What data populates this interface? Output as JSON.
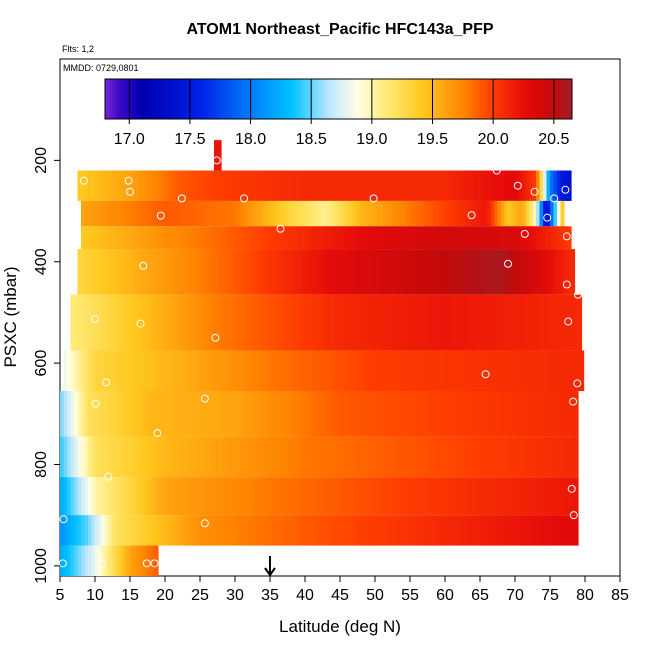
{
  "chart_data": {
    "type": "heatmap",
    "title": "ATOM1 Northeast_Pacific HFC143a_PFP",
    "flights_label": "Flts: 1,2",
    "mmdd_label": "MMDD: 0729,0801",
    "xlabel": "Latitude (deg N)",
    "ylabel": "PSXC (mbar)",
    "xlim": [
      5,
      85
    ],
    "ylim": [
      1020,
      0
    ],
    "x_ticks": [
      5,
      10,
      15,
      20,
      25,
      30,
      35,
      40,
      45,
      50,
      55,
      60,
      65,
      70,
      75,
      80,
      85
    ],
    "y_ticks": [
      200,
      400,
      600,
      800,
      1000
    ],
    "colorbar": {
      "min": 16.8,
      "max": 20.65,
      "ticks": [
        "17.0",
        "17.5",
        "18.0",
        "18.5",
        "19.0",
        "19.5",
        "20.0",
        "20.5"
      ],
      "tick_values": [
        17.0,
        17.5,
        18.0,
        18.5,
        19.0,
        19.5,
        20.0,
        20.5
      ]
    },
    "marker": {
      "latitude": 35,
      "symbol": "arrow"
    },
    "pressure_bands": [
      {
        "top": 160,
        "bottom": 220,
        "lat_start": 27,
        "lat_end": 28,
        "values": [
          [
            27,
            20.2
          ]
        ]
      },
      {
        "top": 220,
        "bottom": 280,
        "lat_start": 7.5,
        "lat_end": 78,
        "values": [
          [
            7.5,
            19.4
          ],
          [
            15,
            19.6
          ],
          [
            22,
            19.9
          ],
          [
            28,
            20.0
          ],
          [
            40,
            20.1
          ],
          [
            60,
            20.1
          ],
          [
            70,
            20.3
          ],
          [
            73,
            20.0
          ],
          [
            75,
            18.0
          ],
          [
            76,
            17.7
          ],
          [
            77,
            17.4
          ]
        ]
      },
      {
        "top": 280,
        "bottom": 330,
        "lat_start": 8,
        "lat_end": 77,
        "values": [
          [
            8,
            19.6
          ],
          [
            20,
            19.9
          ],
          [
            30,
            19.8
          ],
          [
            38,
            19.3
          ],
          [
            43,
            19.05
          ],
          [
            48,
            19.5
          ],
          [
            55,
            19.8
          ],
          [
            66,
            20.2
          ],
          [
            69,
            19.4
          ],
          [
            71,
            19.6
          ],
          [
            73,
            18.9
          ],
          [
            74.5,
            17.2
          ],
          [
            75.5,
            18.2
          ],
          [
            77,
            19.6
          ]
        ]
      },
      {
        "top": 330,
        "bottom": 375,
        "lat_start": 8,
        "lat_end": 78,
        "values": [
          [
            8,
            19.4
          ],
          [
            20,
            19.7
          ],
          [
            35,
            20.0
          ],
          [
            50,
            20.3
          ],
          [
            60,
            20.4
          ],
          [
            70,
            20.35
          ],
          [
            78,
            20.0
          ]
        ]
      },
      {
        "top": 375,
        "bottom": 465,
        "lat_start": 7.5,
        "lat_end": 78.5,
        "values": [
          [
            7.5,
            19.3
          ],
          [
            18,
            19.6
          ],
          [
            30,
            19.9
          ],
          [
            45,
            20.3
          ],
          [
            60,
            20.5
          ],
          [
            68,
            20.6
          ],
          [
            78,
            20.1
          ]
        ]
      },
      {
        "top": 465,
        "bottom": 575,
        "lat_start": 6.5,
        "lat_end": 79.5,
        "values": [
          [
            6.5,
            19.1
          ],
          [
            15,
            19.4
          ],
          [
            28,
            19.8
          ],
          [
            45,
            20.1
          ],
          [
            60,
            20.2
          ],
          [
            79,
            20.1
          ]
        ]
      },
      {
        "top": 575,
        "bottom": 655,
        "lat_start": 5.5,
        "lat_end": 79.8,
        "values": [
          [
            5.5,
            18.8
          ],
          [
            10,
            19.3
          ],
          [
            20,
            19.5
          ],
          [
            35,
            19.8
          ],
          [
            50,
            20.0
          ],
          [
            79,
            20.1
          ]
        ]
      },
      {
        "top": 655,
        "bottom": 745,
        "lat_start": 5,
        "lat_end": 79,
        "values": [
          [
            5,
            18.5
          ],
          [
            9,
            19.2
          ],
          [
            18,
            19.5
          ],
          [
            30,
            19.6
          ],
          [
            45,
            19.9
          ],
          [
            79,
            20.1
          ]
        ]
      },
      {
        "top": 745,
        "bottom": 825,
        "lat_start": 5,
        "lat_end": 79,
        "values": [
          [
            5,
            18.4
          ],
          [
            10,
            19.2
          ],
          [
            20,
            19.5
          ],
          [
            40,
            19.8
          ],
          [
            79,
            20.1
          ]
        ]
      },
      {
        "top": 825,
        "bottom": 900,
        "lat_start": 5,
        "lat_end": 79,
        "values": [
          [
            5,
            18.2
          ],
          [
            10,
            19.0
          ],
          [
            20,
            19.6
          ],
          [
            35,
            19.8
          ],
          [
            55,
            20.0
          ],
          [
            79,
            20.2
          ]
        ]
      },
      {
        "top": 900,
        "bottom": 960,
        "lat_start": 5,
        "lat_end": 79,
        "values": [
          [
            5,
            18.1
          ],
          [
            9,
            18.5
          ],
          [
            13,
            19.2
          ],
          [
            25,
            19.7
          ],
          [
            40,
            19.9
          ],
          [
            79,
            20.3
          ]
        ]
      },
      {
        "top": 960,
        "bottom": 1020,
        "lat_start": 5,
        "lat_end": 19,
        "values": [
          [
            5,
            18.2
          ],
          [
            10,
            18.8
          ],
          [
            15,
            19.6
          ],
          [
            19,
            19.9
          ]
        ]
      }
    ],
    "sample_points": [
      [
        27.4,
        200
      ],
      [
        8.4,
        240
      ],
      [
        14.8,
        240
      ],
      [
        67.4,
        220
      ],
      [
        70.4,
        250
      ],
      [
        72.8,
        262
      ],
      [
        77.2,
        258
      ],
      [
        15.0,
        262
      ],
      [
        22.4,
        275
      ],
      [
        31.3,
        275
      ],
      [
        49.8,
        275
      ],
      [
        75.6,
        275
      ],
      [
        19.4,
        309
      ],
      [
        63.8,
        308
      ],
      [
        74.6,
        313
      ],
      [
        36.5,
        335
      ],
      [
        71.4,
        345
      ],
      [
        77.4,
        350
      ],
      [
        16.9,
        408
      ],
      [
        69.0,
        404
      ],
      [
        77.4,
        445
      ],
      [
        79.0,
        465
      ],
      [
        27.2,
        550
      ],
      [
        10.0,
        513
      ],
      [
        16.5,
        522
      ],
      [
        77.6,
        518
      ],
      [
        65.8,
        622
      ],
      [
        78.9,
        640
      ],
      [
        11.6,
        638
      ],
      [
        10.1,
        680
      ],
      [
        25.7,
        670
      ],
      [
        78.3,
        676
      ],
      [
        18.9,
        738
      ],
      [
        11.9,
        824
      ],
      [
        78.1,
        848
      ],
      [
        25.7,
        916
      ],
      [
        78.4,
        900
      ],
      [
        5.5,
        908
      ],
      [
        5.4,
        995
      ],
      [
        11.0,
        995
      ],
      [
        17.4,
        995
      ],
      [
        18.5,
        995
      ]
    ]
  }
}
